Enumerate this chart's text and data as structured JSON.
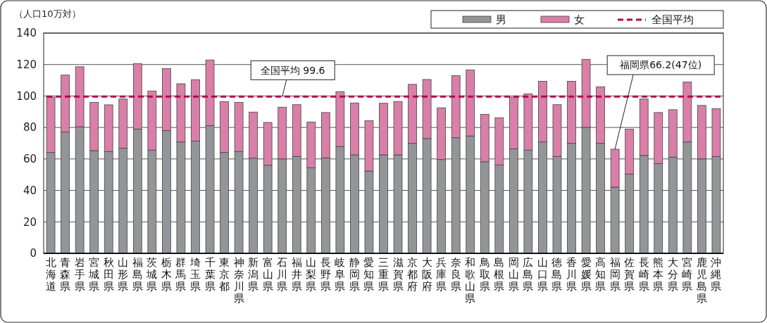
{
  "chart_data": {
    "type": "bar",
    "stacked": true,
    "ylabel": "（人口10万対）",
    "categories": [
      "北海道",
      "青森県",
      "岩手県",
      "宮城県",
      "秋田県",
      "山形県",
      "福島県",
      "茨城県",
      "栃木県",
      "群馬県",
      "埼玉県",
      "千葉県",
      "東京都",
      "神奈川県",
      "新潟県",
      "富山県",
      "石川県",
      "福井県",
      "山梨県",
      "長野県",
      "岐阜県",
      "静岡県",
      "愛知県",
      "三重県",
      "滋賀県",
      "京都府",
      "大阪府",
      "兵庫県",
      "奈良県",
      "和歌山県",
      "鳥取県",
      "島根県",
      "岡山県",
      "広島県",
      "山口県",
      "徳島県",
      "香川県",
      "愛媛県",
      "高知県",
      "福岡県",
      "佐賀県",
      "長崎県",
      "熊本県",
      "大分県",
      "宮崎県",
      "鹿児島県",
      "沖縄県"
    ],
    "series": [
      {
        "name": "男",
        "color": "#939598",
        "values": [
          64.1,
          77.1,
          80.5,
          65.3,
          64.7,
          66.8,
          79,
          65.6,
          78,
          70.8,
          71.4,
          81.1,
          64.1,
          64.7,
          60.5,
          56,
          60,
          61.6,
          54.4,
          60.7,
          67.9,
          62.6,
          52.3,
          62.6,
          62.6,
          69.9,
          73,
          59.6,
          73.5,
          74.6,
          58.2,
          56.2,
          66.4,
          65.6,
          70.8,
          61.6,
          69.9,
          80.1,
          69.9,
          42.1,
          50.4,
          62.2,
          57.1,
          61.2,
          70.8,
          60,
          61.6
        ]
      },
      {
        "name": "女",
        "color": "#d97fa8",
        "values": [
          35.1,
          36.2,
          38.1,
          30.6,
          29.7,
          31.3,
          41.6,
          37.6,
          39.5,
          37,
          39,
          41.8,
          32.4,
          31.2,
          29.3,
          27.2,
          32.9,
          32.9,
          29.1,
          28.8,
          34.9,
          33,
          32,
          32.8,
          33.9,
          37.5,
          37.5,
          32.9,
          39.5,
          42,
          30.1,
          30,
          32.8,
          35.8,
          38.6,
          32.9,
          39.5,
          43.2,
          36,
          24.1,
          28.6,
          35.9,
          32.4,
          30.1,
          38.1,
          34,
          30.3
        ]
      }
    ],
    "ylim": [
      0,
      140
    ],
    "yticks": [
      0,
      20,
      40,
      60,
      80,
      100,
      120,
      140
    ],
    "grid": "y",
    "legend": "top right",
    "ref_lines": [
      {
        "axis": "y",
        "value": 99.6,
        "label": "全国平均",
        "color": "#b5004f",
        "line_style": "dashed"
      }
    ],
    "annotations": [
      {
        "text": "全国平均 99.6",
        "x": "石川県",
        "y": 99.6
      },
      {
        "text": "福岡県66.2(47位)",
        "x": "福岡県",
        "y": 66.2
      }
    ]
  }
}
